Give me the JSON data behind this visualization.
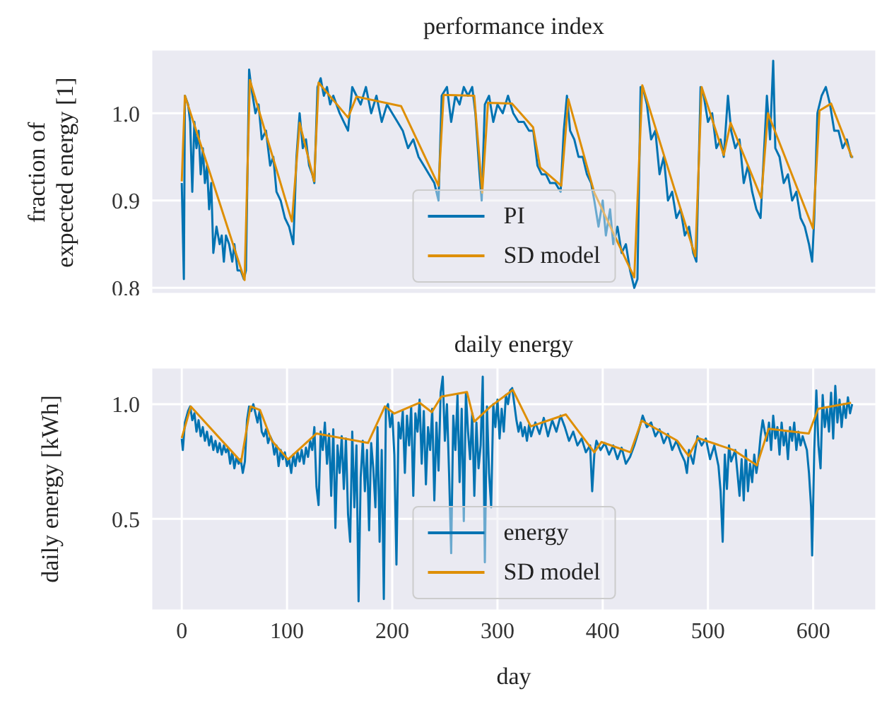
{
  "chart_data": [
    {
      "type": "line",
      "title": "performance index",
      "ylabel": "fraction of expected energy [1]",
      "xlim": [
        -29,
        660
      ],
      "xticks": [
        0,
        100,
        200,
        300,
        400,
        500,
        600
      ],
      "ylim": [
        0.793,
        1.073
      ],
      "yticks": [
        0.8,
        0.9,
        {
          "value": 1,
          "label": "1.0"
        }
      ],
      "tick_labels": "y",
      "grid": true,
      "legend": "bottom",
      "series": [
        {
          "name": "PI",
          "color": "#0173b2",
          "x": [
            0,
            2,
            3,
            6,
            8,
            10,
            12,
            14,
            16,
            18,
            20,
            22,
            24,
            26,
            28,
            30,
            33,
            36,
            38,
            40,
            42,
            45,
            48,
            50,
            53,
            56,
            59,
            61,
            64,
            66,
            70,
            73,
            76,
            80,
            84,
            87,
            90,
            94,
            98,
            102,
            104,
            106,
            109,
            112,
            115,
            118,
            121,
            124,
            126,
            129,
            132,
            135,
            138,
            141,
            144,
            147,
            150,
            154,
            158,
            162,
            166,
            170,
            175,
            180,
            185,
            190,
            195,
            200,
            205,
            210,
            215,
            220,
            225,
            230,
            235,
            240,
            244,
            247,
            252,
            256,
            260,
            264,
            268,
            272,
            276,
            279,
            283,
            285,
            288,
            292,
            296,
            300,
            305,
            310,
            315,
            320,
            325,
            330,
            334,
            338,
            342,
            346,
            350,
            355,
            360,
            363,
            366,
            369,
            373,
            377,
            381,
            385,
            389,
            392,
            396,
            400,
            403,
            407,
            410,
            414,
            418,
            422,
            426,
            430,
            433,
            436,
            438,
            442,
            446,
            450,
            454,
            458,
            462,
            466,
            470,
            474,
            478,
            482,
            486,
            489,
            493,
            496,
            500,
            504,
            508,
            512,
            515,
            519,
            522,
            526,
            530,
            534,
            538,
            542,
            546,
            550,
            553,
            556,
            559,
            562,
            564,
            568,
            572,
            576,
            580,
            584,
            588,
            592,
            596,
            599,
            601,
            604,
            608,
            612,
            616,
            620,
            624,
            628,
            632,
            636,
            638
          ],
          "values": [
            0.92,
            0.81,
            1.02,
            1.01,
            0.99,
            0.91,
            0.99,
            0.96,
            0.98,
            0.93,
            0.96,
            0.92,
            0.94,
            0.89,
            0.92,
            0.84,
            0.87,
            0.85,
            0.86,
            0.83,
            0.86,
            0.85,
            0.83,
            0.85,
            0.82,
            0.82,
            0.81,
            0.82,
            1.05,
            1.03,
            1.0,
            1.01,
            0.97,
            0.98,
            0.94,
            0.95,
            0.91,
            0.9,
            0.88,
            0.87,
            0.86,
            0.85,
            0.95,
            1.0,
            0.96,
            0.97,
            0.94,
            0.93,
            0.92,
            1.03,
            1.04,
            1.02,
            1.03,
            1.01,
            1.02,
            1.01,
            1.0,
            0.99,
            0.98,
            1.03,
            1.02,
            1.01,
            1.03,
            1.0,
            1.02,
            0.99,
            1.01,
            1.0,
            0.99,
            0.98,
            0.96,
            0.97,
            0.95,
            0.94,
            0.93,
            0.92,
            0.9,
            1.02,
            1.03,
            0.99,
            1.02,
            1.01,
            1.03,
            1.02,
            1.03,
            1.0,
            0.93,
            0.9,
            1.01,
            1.02,
            0.99,
            1.01,
            1.0,
            1.02,
            1.0,
            0.99,
            0.99,
            0.98,
            0.98,
            0.94,
            0.93,
            0.93,
            0.92,
            0.92,
            0.91,
            0.98,
            1.02,
            0.98,
            0.97,
            0.95,
            0.95,
            0.93,
            0.92,
            0.9,
            0.87,
            0.9,
            0.86,
            0.89,
            0.85,
            0.87,
            0.84,
            0.85,
            0.82,
            0.8,
            0.81,
            1.03,
            1.03,
            1.01,
            0.97,
            0.98,
            0.93,
            0.95,
            0.9,
            0.91,
            0.88,
            0.89,
            0.86,
            0.87,
            0.84,
            0.83,
            1.03,
            1.02,
            0.99,
            1.0,
            0.96,
            0.97,
            0.95,
            1.02,
            0.98,
            0.96,
            0.97,
            0.92,
            0.94,
            0.91,
            0.89,
            0.88,
            0.95,
            1.02,
            0.97,
            1.06,
            0.96,
            0.95,
            0.92,
            0.93,
            0.9,
            0.91,
            0.88,
            0.87,
            0.85,
            0.83,
            0.88,
            1.0,
            1.02,
            1.03,
            1.01,
            0.98,
            0.98,
            0.96,
            0.97,
            0.95,
            0.95
          ]
        },
        {
          "name": "SD model",
          "color": "#de8f05",
          "x": [
            0,
            3,
            59.7,
            64.7,
            104.7,
            112,
            125.8,
            130,
            158,
            166,
            208.5,
            244,
            248.8,
            277.9,
            285.5,
            291,
            313.7,
            333.8,
            340.5,
            360.6,
            367.3,
            392,
            430,
            437.6,
            488,
            494,
            515,
            521.5,
            550.6,
            557,
            599.8,
            606,
            617,
            637
          ],
          "values": [
            0.922,
            1.02,
            0.809,
            1.038,
            0.876,
            0.989,
            0.922,
            1.035,
            0.995,
            1.019,
            1.008,
            0.917,
            1.021,
            1.02,
            0.909,
            1.012,
            1.011,
            0.984,
            0.938,
            0.917,
            1.016,
            0.909,
            0.812,
            1.032,
            0.836,
            1.03,
            0.952,
            0.989,
            0.903,
            1.0,
            0.868,
            1.003,
            1.011,
            0.949
          ]
        }
      ]
    },
    {
      "type": "line",
      "title": "daily energy",
      "xlabel": "day",
      "ylabel": "daily energy [kWh]",
      "xlim": [
        -29,
        660
      ],
      "xticks": [
        0,
        100,
        200,
        300,
        400,
        500,
        600
      ],
      "ylim": [
        0.1,
        1.16
      ],
      "yticks": [
        0.5,
        {
          "value": 1,
          "label": "1.0"
        }
      ],
      "grid": true,
      "legend": "bottom",
      "series": [
        {
          "name": "energy",
          "color": "#0173b2",
          "x": [
            0,
            1,
            3,
            6,
            8,
            10,
            12,
            14,
            16,
            18,
            20,
            22,
            24,
            26,
            28,
            30,
            32,
            34,
            36,
            38,
            40,
            42,
            44,
            46,
            48,
            50,
            52,
            54,
            56,
            58,
            60,
            62,
            64,
            66,
            68,
            70,
            72,
            74,
            76,
            78,
            80,
            82,
            84,
            86,
            88,
            90,
            92,
            94,
            96,
            98,
            100,
            102,
            104,
            106,
            108,
            110,
            112,
            114,
            116,
            118,
            120,
            122,
            124,
            126,
            128,
            130,
            132,
            134,
            136,
            138,
            140,
            142,
            144,
            146,
            148,
            150,
            152,
            154,
            156,
            158,
            160,
            162,
            164,
            166,
            168,
            170,
            172,
            174,
            176,
            178,
            180,
            182,
            184,
            186,
            188,
            190,
            192,
            194,
            196,
            198,
            200,
            202,
            204,
            206,
            208,
            210,
            212,
            214,
            216,
            218,
            220,
            222,
            224,
            226,
            228,
            230,
            232,
            234,
            236,
            238,
            240,
            242,
            244,
            246,
            248,
            250,
            252,
            254,
            256,
            258,
            260,
            262,
            264,
            266,
            268,
            270,
            272,
            274,
            276,
            278,
            280,
            282,
            284,
            286,
            288,
            290,
            292,
            294,
            296,
            298,
            300,
            302,
            304,
            306,
            308,
            310,
            312,
            314,
            316,
            318,
            320,
            322,
            324,
            326,
            328,
            330,
            332,
            336,
            340,
            344,
            348,
            352,
            356,
            360,
            364,
            368,
            372,
            376,
            380,
            384,
            388,
            390,
            392,
            394,
            398,
            402,
            406,
            410,
            414,
            418,
            422,
            426,
            430,
            434,
            438,
            442,
            446,
            450,
            454,
            458,
            462,
            466,
            470,
            474,
            478,
            480,
            482,
            486,
            490,
            494,
            498,
            502,
            506,
            510,
            512,
            514,
            516,
            518,
            520,
            522,
            526,
            530,
            532,
            534,
            536,
            538,
            540,
            542,
            544,
            546,
            548,
            550,
            552,
            554,
            556,
            558,
            560,
            562,
            564,
            566,
            568,
            570,
            572,
            574,
            576,
            578,
            580,
            582,
            584,
            586,
            588,
            590,
            594,
            596,
            598,
            599,
            601,
            603,
            605,
            607,
            609,
            611,
            613,
            615,
            617,
            619,
            621,
            623,
            625,
            627,
            629,
            631,
            633,
            635,
            637
          ],
          "values": [
            0.85,
            0.8,
            0.92,
            0.97,
            0.99,
            0.93,
            0.96,
            0.88,
            0.93,
            0.86,
            0.9,
            0.84,
            0.88,
            0.82,
            0.86,
            0.8,
            0.84,
            0.79,
            0.83,
            0.78,
            0.82,
            0.79,
            0.81,
            0.74,
            0.79,
            0.72,
            0.77,
            0.74,
            0.76,
            0.7,
            0.75,
            0.93,
            0.99,
            0.97,
            1.0,
            0.96,
            0.92,
            0.97,
            0.88,
            0.86,
            0.89,
            0.83,
            0.86,
            0.84,
            0.78,
            0.82,
            0.73,
            0.8,
            0.76,
            0.79,
            0.73,
            0.76,
            0.7,
            0.78,
            0.73,
            0.79,
            0.75,
            0.8,
            0.74,
            0.81,
            0.77,
            0.84,
            0.8,
            0.9,
            0.64,
            0.56,
            0.88,
            0.8,
            0.92,
            0.74,
            0.87,
            0.6,
            0.89,
            0.46,
            0.82,
            0.7,
            0.86,
            0.63,
            0.85,
            0.52,
            0.4,
            0.88,
            0.55,
            0.82,
            0.14,
            0.68,
            0.84,
            0.62,
            0.8,
            0.45,
            0.83,
            0.72,
            0.55,
            0.9,
            0.4,
            0.8,
            0.15,
            0.98,
            1.0,
            0.9,
            0.96,
            0.78,
            0.3,
            0.92,
            0.85,
            0.97,
            0.7,
            0.95,
            0.82,
            0.99,
            0.6,
            0.96,
            0.88,
            1.02,
            0.74,
            0.97,
            0.65,
            0.9,
            0.8,
            0.98,
            0.58,
            0.92,
            0.71,
            1.05,
            1.12,
            0.84,
            1.0,
            0.7,
            0.35,
            0.95,
            0.8,
            1.04,
            0.66,
            0.98,
            0.49,
            1.05,
            0.88,
            0.76,
            0.96,
            0.6,
            0.92,
            0.72,
            0.82,
            1.12,
            0.31,
            0.99,
            0.7,
            0.55,
            1.0,
            0.9,
            1.02,
            0.85,
            0.98,
            0.88,
            1.04,
            1.0,
            1.06,
            1.07,
            1.0,
            0.93,
            0.88,
            0.92,
            0.86,
            0.9,
            0.84,
            0.91,
            0.86,
            0.92,
            0.87,
            0.94,
            0.86,
            0.93,
            0.88,
            0.95,
            0.9,
            0.84,
            0.88,
            0.82,
            0.85,
            0.79,
            0.82,
            0.62,
            0.78,
            0.84,
            0.8,
            0.83,
            0.78,
            0.82,
            0.76,
            0.81,
            0.74,
            0.77,
            0.82,
            0.88,
            0.95,
            0.9,
            0.92,
            0.86,
            0.89,
            0.83,
            0.87,
            0.8,
            0.84,
            0.79,
            0.75,
            0.7,
            0.8,
            0.74,
            0.86,
            0.82,
            0.85,
            0.76,
            0.82,
            0.73,
            0.62,
            0.4,
            0.78,
            0.63,
            0.82,
            0.75,
            0.8,
            0.6,
            0.76,
            0.58,
            0.8,
            0.62,
            0.74,
            0.66,
            0.78,
            0.7,
            0.76,
            0.86,
            0.93,
            0.88,
            0.84,
            0.92,
            0.8,
            0.95,
            0.85,
            0.9,
            0.78,
            0.92,
            0.82,
            0.88,
            0.76,
            0.9,
            0.84,
            0.92,
            0.8,
            0.88,
            0.82,
            0.86,
            0.8,
            0.7,
            0.55,
            0.34,
            0.8,
            1.06,
            0.82,
            0.72,
            1.04,
            0.9,
            0.98,
            0.88,
            1.05,
            0.85,
            1.08,
            0.92,
            1.02,
            0.9,
            1.0,
            0.94,
            1.03,
            0.96,
            1.0
          ]
        },
        {
          "name": "SD model",
          "color": "#de8f05",
          "x": [
            0,
            8.6,
            56.4,
            65.3,
            74.3,
            85.5,
            101,
            128,
            177,
            193,
            202,
            226,
            237.6,
            246.6,
            271,
            278,
            293.5,
            314.6,
            331.6,
            365,
            392,
            398.8,
            426.5,
            437,
            470.6,
            481.7,
            490.6,
            524.2,
            546.5,
            557.7,
            595.8,
            604.7,
            636
          ],
          "values": [
            0.852,
            0.99,
            0.749,
            0.99,
            0.975,
            0.841,
            0.759,
            0.872,
            0.831,
            0.99,
            0.959,
            1.006,
            0.965,
            1.033,
            1.053,
            0.924,
            0.99,
            1.062,
            0.903,
            0.955,
            0.79,
            0.835,
            0.79,
            0.928,
            0.841,
            0.774,
            0.852,
            0.8,
            0.733,
            0.893,
            0.872,
            0.98,
            1.006
          ]
        }
      ]
    }
  ]
}
